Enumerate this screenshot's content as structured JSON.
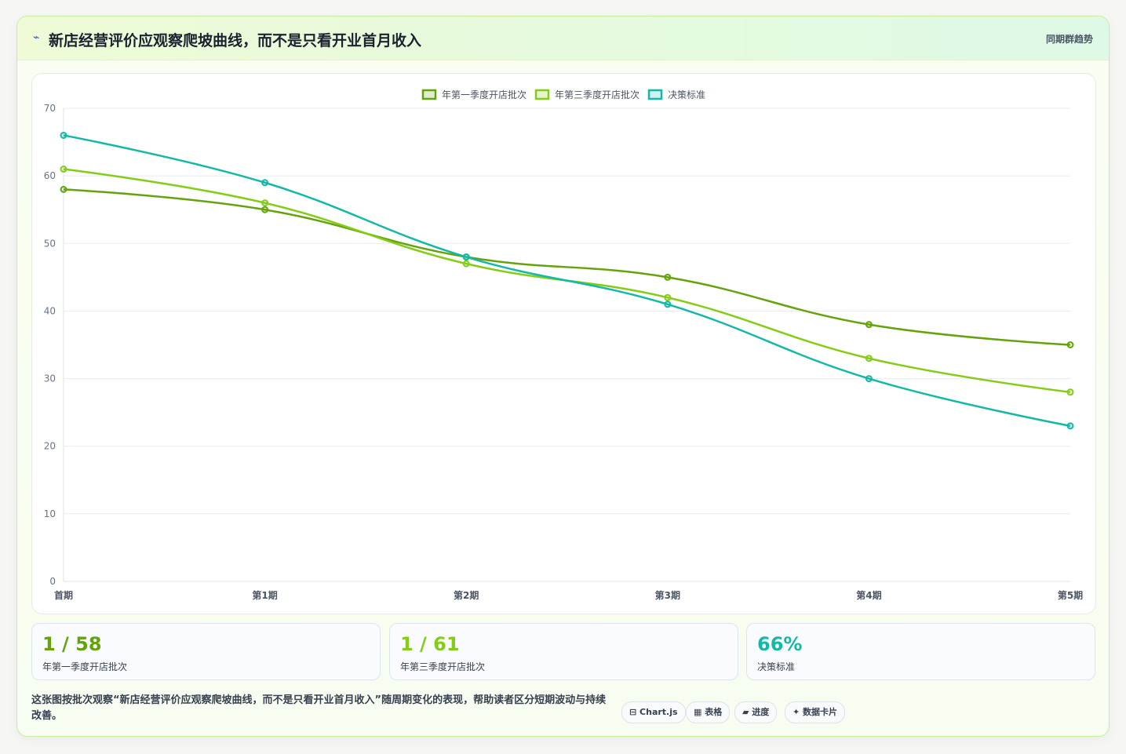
{
  "header": {
    "title": "新店经营评价应观察爬坡曲线，而不是只看开业首月收入",
    "tag": "同期群趋势"
  },
  "chart_data": {
    "type": "line",
    "categories": [
      "首期",
      "第1期",
      "第2期",
      "第3期",
      "第4期",
      "第5期"
    ],
    "series": [
      {
        "name": "年第一季度开店批次",
        "color": "#65a30d",
        "values": [
          58,
          55,
          48,
          45,
          38,
          35
        ]
      },
      {
        "name": "年第三季度开店批次",
        "color": "#84cc16",
        "values": [
          61,
          56,
          47,
          42,
          33,
          28
        ]
      },
      {
        "name": "决策标准",
        "color": "#14b8a6",
        "values": [
          66,
          59,
          48,
          41,
          30,
          23
        ]
      }
    ],
    "ylim": [
      0,
      70
    ],
    "yticks": [
      0,
      10,
      20,
      30,
      40,
      50,
      60,
      70
    ],
    "grid": true,
    "legend": "top"
  },
  "stats": [
    {
      "value": "1 / 58",
      "label": "年第一季度开店批次",
      "color": "#65a30d"
    },
    {
      "value": "1 / 61",
      "label": "年第三季度开店批次",
      "color": "#84cc16"
    },
    {
      "value": "66%",
      "label": "决策标准",
      "color": "#14b8a6"
    }
  ],
  "footer": {
    "note": "这张图按批次观察“新店经营评价应观察爬坡曲线，而不是只看开业首月收入”随周期变化的表现，帮助读者区分短期波动与持续改善。",
    "chips": [
      "Chart.js",
      "表格",
      "进度",
      "数据卡片"
    ]
  }
}
